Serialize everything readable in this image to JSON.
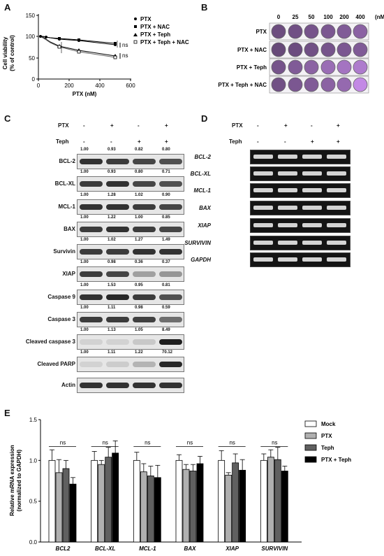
{
  "panels": {
    "a": "A",
    "b": "B",
    "c": "C",
    "d": "D",
    "e": "E"
  },
  "panelA": {
    "title": "",
    "ylabel_line1": "Cell viability",
    "ylabel_line2": "(% of control)",
    "xlabel": "PTX (nM)",
    "yticks": [
      "0",
      "50",
      "100",
      "150"
    ],
    "xticks": [
      "0",
      "200",
      "400",
      "600"
    ],
    "legend": [
      "PTX",
      "PTX + NAC",
      "PTX + Teph",
      "PTX + Teph + NAC"
    ],
    "ns1": "ns",
    "ns2": "ns"
  },
  "panelB": {
    "doses": [
      "0",
      "25",
      "50",
      "100",
      "200",
      "400"
    ],
    "unit": "(nM)",
    "rows": [
      "PTX",
      "PTX + NAC",
      "PTX + Teph",
      "PTX + Teph + NAC"
    ]
  },
  "panelC": {
    "ptx_label": "PTX",
    "teph_label": "Teph",
    "ptx_signs": [
      "-",
      "+",
      "-",
      "+"
    ],
    "teph_signs": [
      "-",
      "-",
      "+",
      "+"
    ],
    "blots": [
      {
        "name": "BCL-2",
        "values": [
          "1.00",
          "0.93",
          "0.82",
          "0.80"
        ]
      },
      {
        "name": "BCL-XL",
        "values": [
          "1.00",
          "0.93",
          "0.80",
          "0.71"
        ]
      },
      {
        "name": "MCL-1",
        "values": [
          "1.00",
          "1.28",
          "1.02",
          "0.90"
        ]
      },
      {
        "name": "BAX",
        "values": [
          "1.00",
          "1.22",
          "1.00",
          "0.85"
        ]
      },
      {
        "name": "Survivin",
        "values": [
          "1.00",
          "1.02",
          "1.27",
          "1.49"
        ]
      },
      {
        "name": "XIAP",
        "values": [
          "1.00",
          "0.98",
          "0.36",
          "0.37"
        ]
      },
      {
        "name": "Caspase 9",
        "values": [
          "1.00",
          "1.53",
          "0.95",
          "0.81"
        ]
      },
      {
        "name": "Caspase 3",
        "values": [
          "1.00",
          "1.11",
          "0.98",
          "0.59"
        ]
      },
      {
        "name": "Cleaved caspase 3",
        "values": [
          "1.00",
          "1.13",
          "1.05",
          "8.49"
        ]
      },
      {
        "name": "Cleaved PARP",
        "values": [
          "1.00",
          "1.11",
          "1.22",
          "70.12"
        ]
      },
      {
        "name": "Actin",
        "values": []
      }
    ]
  },
  "panelD": {
    "ptx_label": "PTX",
    "teph_label": "Teph",
    "ptx_signs": [
      "-",
      "+",
      "-",
      "+"
    ],
    "teph_signs": [
      "-",
      "-",
      "+",
      "+"
    ],
    "genes": [
      "BCL-2",
      "BCL-XL",
      "MCL-1",
      "BAX",
      "XIAP",
      "SURVIVIN",
      "GAPDH"
    ]
  },
  "panelE": {
    "ylabel_line1": "Relative mRNA expression",
    "ylabel_line2": "(normalized to GAPDH)",
    "ns_label": "ns",
    "colors": {
      "Mock": "#ffffff",
      "PTX": "#b0b0b0",
      "Teph": "#606060",
      "PTX + Teph": "#000000"
    },
    "chart_data": {
      "type": "bar",
      "categories": [
        "BCL2",
        "BCL-XL",
        "MCL-1",
        "BAX",
        "XIAP",
        "SURVIVIN"
      ],
      "ylim": [
        0,
        1.5
      ],
      "yticks": [
        "0.0",
        "0.5",
        "1.0",
        "1.5"
      ],
      "series": [
        {
          "name": "Mock",
          "values": [
            1.0,
            1.0,
            1.0,
            1.0,
            1.0,
            1.0
          ],
          "errors": [
            0.13,
            0.11,
            0.1,
            0.07,
            0.12,
            0.08
          ]
        },
        {
          "name": "PTX",
          "values": [
            0.85,
            0.95,
            0.86,
            0.89,
            0.82,
            1.04
          ],
          "errors": [
            0.16,
            0.05,
            0.1,
            0.06,
            0.03,
            0.09
          ]
        },
        {
          "name": "Teph",
          "values": [
            0.9,
            1.04,
            0.81,
            0.87,
            0.97,
            1.01
          ],
          "errors": [
            0.1,
            0.12,
            0.12,
            0.08,
            0.11,
            0.15
          ]
        },
        {
          "name": "PTX + Teph",
          "values": [
            0.71,
            1.09,
            0.79,
            0.96,
            0.88,
            0.87
          ],
          "errors": [
            0.08,
            0.15,
            0.15,
            0.09,
            0.13,
            0.06
          ]
        }
      ]
    }
  }
}
